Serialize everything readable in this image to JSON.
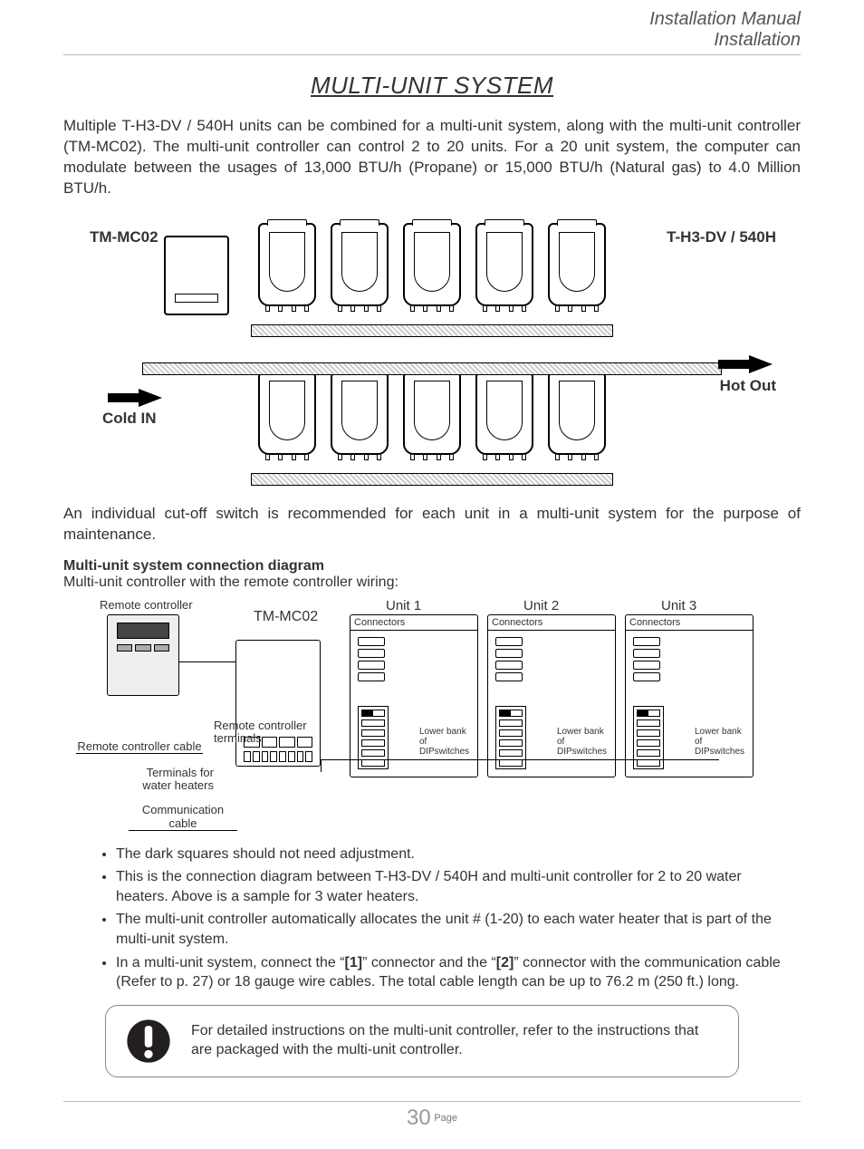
{
  "header": {
    "line1": "Installation Manual",
    "line2": "Installation"
  },
  "title": "MULTI-UNIT SYSTEM",
  "intro": "Multiple T-H3-DV / 540H units can be combined for a multi-unit system, along with the multi-unit controller (TM-MC02).  The multi-unit controller can control 2 to 20 units.  For a 20 unit system, the computer can modulate between the usages of 13,000 BTU/h (Propane) or 15,000 BTU/h (Natural gas) to 4.0 Million BTU/h.",
  "fig1": {
    "controller_label": "TM-MC02",
    "unit_label": "T-H3-DV / 540H",
    "cold_label": "Cold IN",
    "hot_label": "Hot Out",
    "row_counts": [
      5,
      5
    ],
    "colors": {
      "hatch_light": "#cccccc",
      "line": "#000000"
    }
  },
  "note1": "An individual cut-off switch is recommended for each unit in a multi-unit system for the purpose of maintenance.",
  "section2_head": "Multi-unit system connection diagram",
  "section2_sub": "Multi-unit controller with the remote controller wiring:",
  "fig2": {
    "remote_label": "Remote controller",
    "tm_label": "TM-MC02",
    "rc_cable_label": "Remote controller cable",
    "rc_terminals_label": "Remote controller terminals",
    "wh_terminals_label": "Terminals for\nwater heaters",
    "comm_cable_label": "Communication cable",
    "units": [
      {
        "name": "Unit 1",
        "connectors": "Connectors",
        "dip_label": "Lower bank of DIPswitches"
      },
      {
        "name": "Unit 2",
        "connectors": "Connectors",
        "dip_label": "Lower bank of DIPswitches"
      },
      {
        "name": "Unit 3",
        "connectors": "Connectors",
        "dip_label": "Lower bank of DIPswitches"
      }
    ],
    "dip_count": 6
  },
  "bullets": [
    "The dark squares should not need adjustment.",
    "This is the connection diagram between T-H3-DV / 540H and multi-unit controller for 2 to 20 water heaters.  Above is a sample for 3 water heaters.",
    "The multi-unit controller automatically allocates the unit # (1-20) to each water heater that is part of the multi-unit system.",
    "In a multi-unit system, connect the “[1]” connector and the “[2]” connector with the communication cable (Refer to p. 27) or 18 gauge wire cables.  The total cable length can be up to 76.2 m (250 ft.) long."
  ],
  "caution": "For detailed instructions on the multi-unit controller, refer to the instructions that are packaged with the multi-unit controller.",
  "footer": {
    "page": "30",
    "label": "Page"
  }
}
